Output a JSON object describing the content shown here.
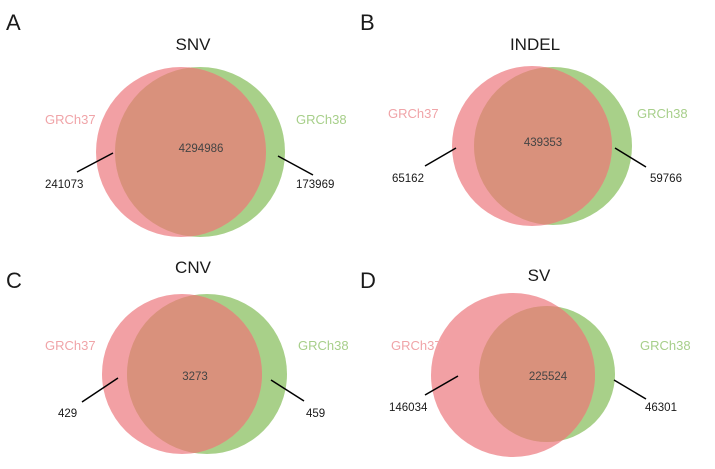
{
  "colors": {
    "left_circle": "#f08f94",
    "right_circle": "#9fcb7c",
    "overlap": "#d9917c",
    "left_label": "#f0a4a8",
    "right_label": "#a7cf8a",
    "line": "#000000"
  },
  "panels": [
    {
      "letter": "A",
      "title": "SNV",
      "left_label": "GRCh37",
      "right_label": "GRCh38",
      "left_only": "241073",
      "shared": "4294986",
      "right_only": "173969"
    },
    {
      "letter": "B",
      "title": "INDEL",
      "left_label": "GRCh37",
      "right_label": "GRCh38",
      "left_only": "65162",
      "shared": "439353",
      "right_only": "59766"
    },
    {
      "letter": "C",
      "title": "CNV",
      "left_label": "GRCh37",
      "right_label": "GRCh38",
      "left_only": "429",
      "shared": "3273",
      "right_only": "459"
    },
    {
      "letter": "D",
      "title": "SV",
      "left_label": "GRCh37",
      "right_label": "GRCh38",
      "left_only": "146034",
      "shared": "225524",
      "right_only": "46301"
    }
  ]
}
